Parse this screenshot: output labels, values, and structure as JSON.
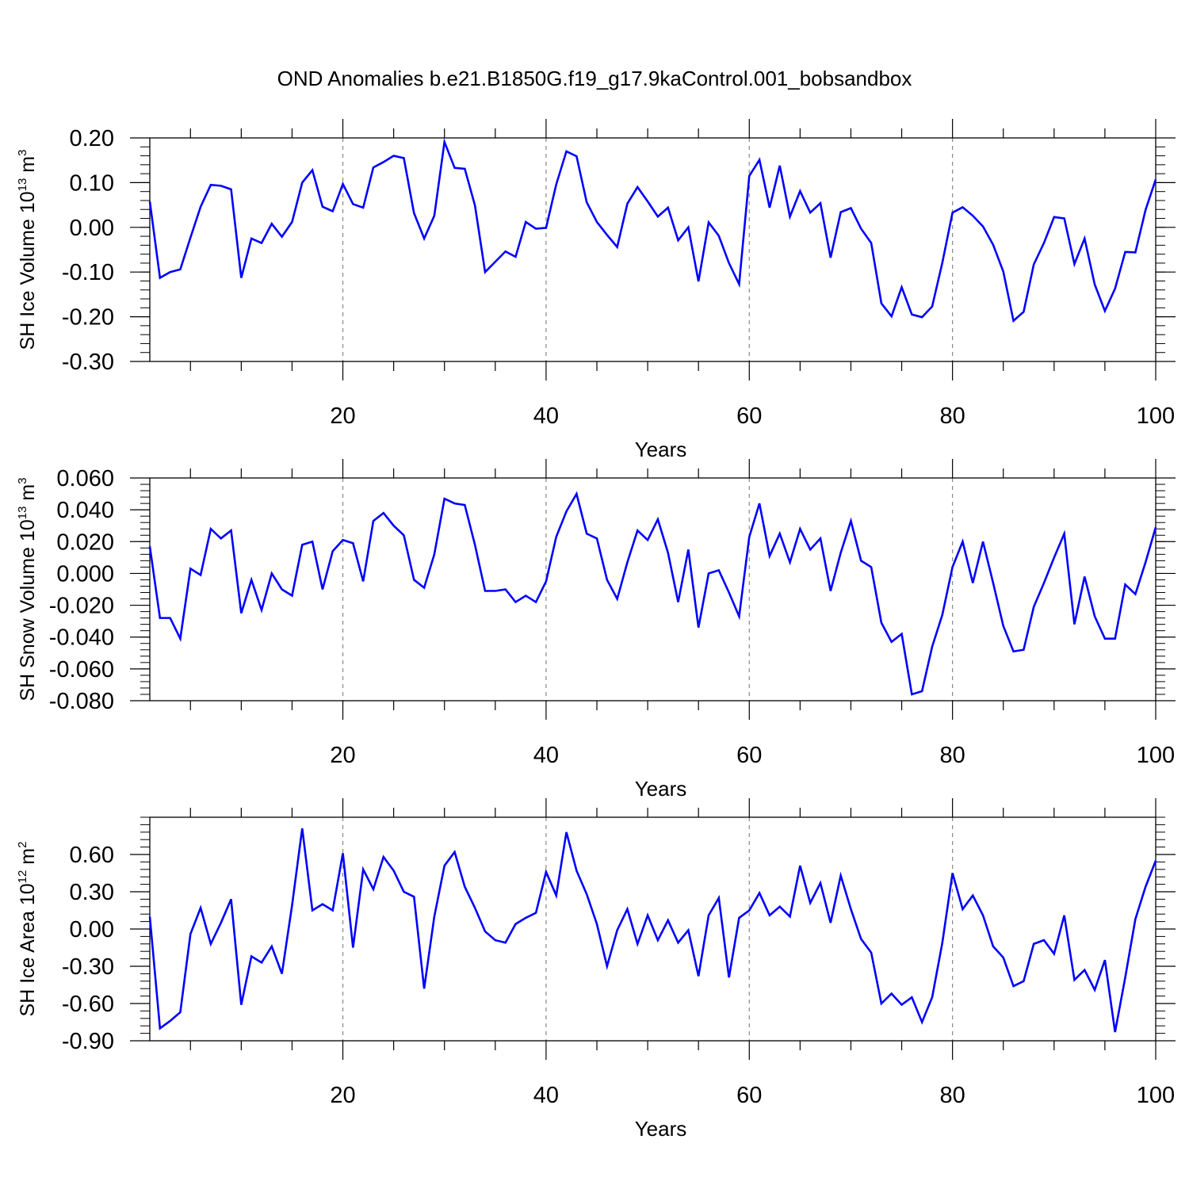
{
  "title": "OND Anomalies b.e21.B1850G.f19_g17.9kaControl.001_bobsandbox",
  "line_color": "#0000ff",
  "chart_data": [
    {
      "type": "line",
      "ylabel_main": "SH Ice Volume 10",
      "ylabel_exp": "13",
      "ylabel_unit": " m",
      "ylabel_unit_exp": "3",
      "xlabel": "Years",
      "xlim": [
        1,
        100
      ],
      "ylim": [
        -0.3,
        0.2
      ],
      "xticks": [
        "20",
        "40",
        "60",
        "80",
        "100"
      ],
      "yticks": [
        "0.20",
        "0.10",
        "0.00",
        "-0.10",
        "-0.20",
        "-0.30"
      ],
      "ytick_values": [
        0.2,
        0.1,
        0.0,
        -0.1,
        -0.2,
        -0.3
      ],
      "x": [
        1,
        2,
        3,
        4,
        5,
        6,
        7,
        8,
        9,
        10,
        11,
        12,
        13,
        14,
        15,
        16,
        17,
        18,
        19,
        20,
        21,
        22,
        23,
        24,
        25,
        26,
        27,
        28,
        29,
        30,
        31,
        32,
        33,
        34,
        35,
        36,
        37,
        38,
        39,
        40,
        41,
        42,
        43,
        44,
        45,
        46,
        47,
        48,
        49,
        50,
        51,
        52,
        53,
        54,
        55,
        56,
        57,
        58,
        59,
        60,
        61,
        62,
        63,
        64,
        65,
        66,
        67,
        68,
        69,
        70,
        71,
        72,
        73,
        74,
        75,
        76,
        77,
        78,
        79,
        80,
        81,
        82,
        83,
        84,
        85,
        86,
        87,
        88,
        89,
        90,
        91,
        92,
        93,
        94,
        95,
        96,
        97,
        98,
        99,
        100
      ],
      "values": [
        0.058,
        -0.113,
        -0.1,
        -0.094,
        -0.023,
        0.046,
        0.095,
        0.093,
        0.085,
        -0.113,
        -0.025,
        -0.035,
        0.008,
        -0.021,
        0.012,
        0.1,
        0.128,
        0.046,
        0.036,
        0.097,
        0.052,
        0.044,
        0.134,
        0.146,
        0.16,
        0.155,
        0.032,
        -0.025,
        0.026,
        0.191,
        0.133,
        0.131,
        0.049,
        -0.1,
        -0.077,
        -0.054,
        -0.066,
        0.012,
        -0.003,
        -0.001,
        0.096,
        0.17,
        0.159,
        0.056,
        0.012,
        -0.017,
        -0.044,
        0.053,
        0.09,
        0.058,
        0.024,
        0.044,
        -0.029,
        0.0,
        -0.121,
        0.011,
        -0.019,
        -0.08,
        -0.127,
        0.115,
        0.151,
        0.044,
        0.138,
        0.024,
        0.081,
        0.033,
        0.054,
        -0.068,
        0.034,
        0.043,
        -0.003,
        -0.035,
        -0.17,
        -0.199,
        -0.134,
        -0.195,
        -0.201,
        -0.177,
        -0.079,
        0.033,
        0.045,
        0.026,
        0.002,
        -0.039,
        -0.099,
        -0.209,
        -0.189,
        -0.083,
        -0.035,
        0.023,
        0.02,
        -0.082,
        -0.025,
        -0.128,
        -0.187,
        -0.137,
        -0.055,
        -0.056,
        0.039,
        0.107
      ]
    },
    {
      "type": "line",
      "ylabel_main": "SH Snow Volume 10",
      "ylabel_exp": "13",
      "ylabel_unit": " m",
      "ylabel_unit_exp": "3",
      "xlabel": "Years",
      "xlim": [
        1,
        100
      ],
      "ylim": [
        -0.08,
        0.06
      ],
      "xticks": [
        "20",
        "40",
        "60",
        "80",
        "100"
      ],
      "yticks": [
        "0.060",
        "0.040",
        "0.020",
        "0.000",
        "-0.020",
        "-0.040",
        "-0.060",
        "-0.080"
      ],
      "ytick_values": [
        0.06,
        0.04,
        0.02,
        0.0,
        -0.02,
        -0.04,
        -0.06,
        -0.08
      ],
      "x": [
        1,
        2,
        3,
        4,
        5,
        6,
        7,
        8,
        9,
        10,
        11,
        12,
        13,
        14,
        15,
        16,
        17,
        18,
        19,
        20,
        21,
        22,
        23,
        24,
        25,
        26,
        27,
        28,
        29,
        30,
        31,
        32,
        33,
        34,
        35,
        36,
        37,
        38,
        39,
        40,
        41,
        42,
        43,
        44,
        45,
        46,
        47,
        48,
        49,
        50,
        51,
        52,
        53,
        54,
        55,
        56,
        57,
        58,
        59,
        60,
        61,
        62,
        63,
        64,
        65,
        66,
        67,
        68,
        69,
        70,
        71,
        72,
        73,
        74,
        75,
        76,
        77,
        78,
        79,
        80,
        81,
        82,
        83,
        84,
        85,
        86,
        87,
        88,
        89,
        90,
        91,
        92,
        93,
        94,
        95,
        96,
        97,
        98,
        99,
        100
      ],
      "values": [
        0.017,
        -0.028,
        -0.028,
        -0.041,
        0.003,
        -0.001,
        0.028,
        0.022,
        0.027,
        -0.025,
        -0.004,
        -0.023,
        0.0,
        -0.01,
        -0.014,
        0.018,
        0.02,
        -0.01,
        0.014,
        0.021,
        0.019,
        -0.005,
        0.033,
        0.038,
        0.03,
        0.024,
        -0.004,
        -0.009,
        0.012,
        0.047,
        0.044,
        0.043,
        0.018,
        -0.011,
        -0.011,
        -0.01,
        -0.018,
        -0.014,
        -0.018,
        -0.005,
        0.023,
        0.039,
        0.05,
        0.025,
        0.022,
        -0.004,
        -0.016,
        0.007,
        0.027,
        0.021,
        0.034,
        0.013,
        -0.018,
        0.015,
        -0.034,
        0.0,
        0.002,
        -0.012,
        -0.027,
        0.023,
        0.044,
        0.011,
        0.025,
        0.007,
        0.028,
        0.015,
        0.022,
        -0.011,
        0.013,
        0.033,
        0.008,
        0.004,
        -0.031,
        -0.043,
        -0.038,
        -0.076,
        -0.074,
        -0.046,
        -0.026,
        0.004,
        0.02,
        -0.006,
        0.02,
        -0.006,
        -0.033,
        -0.049,
        -0.048,
        -0.021,
        -0.006,
        0.01,
        0.025,
        -0.032,
        -0.002,
        -0.027,
        -0.041,
        -0.041,
        -0.007,
        -0.013,
        0.007,
        0.029
      ]
    },
    {
      "type": "line",
      "ylabel_main": "SH Ice Area 10",
      "ylabel_exp": "12",
      "ylabel_unit": " m",
      "ylabel_unit_exp": "2",
      "xlabel": "Years",
      "xlim": [
        1,
        100
      ],
      "ylim": [
        -0.9,
        0.9
      ],
      "xticks": [
        "20",
        "40",
        "60",
        "80",
        "100"
      ],
      "yticks": [
        "0.60",
        "0.30",
        "0.00",
        "-0.30",
        "-0.60",
        "-0.90"
      ],
      "ytick_values": [
        0.6,
        0.3,
        0.0,
        -0.3,
        -0.6,
        -0.9
      ],
      "x": [
        1,
        2,
        3,
        4,
        5,
        6,
        7,
        8,
        9,
        10,
        11,
        12,
        13,
        14,
        15,
        16,
        17,
        18,
        19,
        20,
        21,
        22,
        23,
        24,
        25,
        26,
        27,
        28,
        29,
        30,
        31,
        32,
        33,
        34,
        35,
        36,
        37,
        38,
        39,
        40,
        41,
        42,
        43,
        44,
        45,
        46,
        47,
        48,
        49,
        50,
        51,
        52,
        53,
        54,
        55,
        56,
        57,
        58,
        59,
        60,
        61,
        62,
        63,
        64,
        65,
        66,
        67,
        68,
        69,
        70,
        71,
        72,
        73,
        74,
        75,
        76,
        77,
        78,
        79,
        80,
        81,
        82,
        83,
        84,
        85,
        86,
        87,
        88,
        89,
        90,
        91,
        92,
        93,
        94,
        95,
        96,
        97,
        98,
        99,
        100
      ],
      "values": [
        0.1,
        -0.8,
        -0.74,
        -0.67,
        -0.04,
        0.17,
        -0.12,
        0.05,
        0.24,
        -0.61,
        -0.22,
        -0.27,
        -0.14,
        -0.36,
        0.19,
        0.81,
        0.15,
        0.2,
        0.15,
        0.61,
        -0.15,
        0.48,
        0.32,
        0.58,
        0.47,
        0.3,
        0.26,
        -0.48,
        0.1,
        0.51,
        0.62,
        0.34,
        0.17,
        -0.02,
        -0.09,
        -0.11,
        0.04,
        0.09,
        0.13,
        0.46,
        0.27,
        0.78,
        0.47,
        0.28,
        0.04,
        -0.3,
        -0.01,
        0.16,
        -0.12,
        0.11,
        -0.09,
        0.07,
        -0.11,
        -0.01,
        -0.38,
        0.11,
        0.25,
        -0.39,
        0.09,
        0.15,
        0.29,
        0.11,
        0.18,
        0.1,
        0.51,
        0.21,
        0.37,
        0.05,
        0.43,
        0.16,
        -0.08,
        -0.19,
        -0.6,
        -0.52,
        -0.61,
        -0.55,
        -0.75,
        -0.55,
        -0.11,
        0.45,
        0.16,
        0.27,
        0.11,
        -0.14,
        -0.23,
        -0.46,
        -0.42,
        -0.12,
        -0.09,
        -0.2,
        0.11,
        -0.41,
        -0.33,
        -0.49,
        -0.25,
        -0.83,
        -0.39,
        0.08,
        0.34,
        0.55
      ]
    }
  ]
}
